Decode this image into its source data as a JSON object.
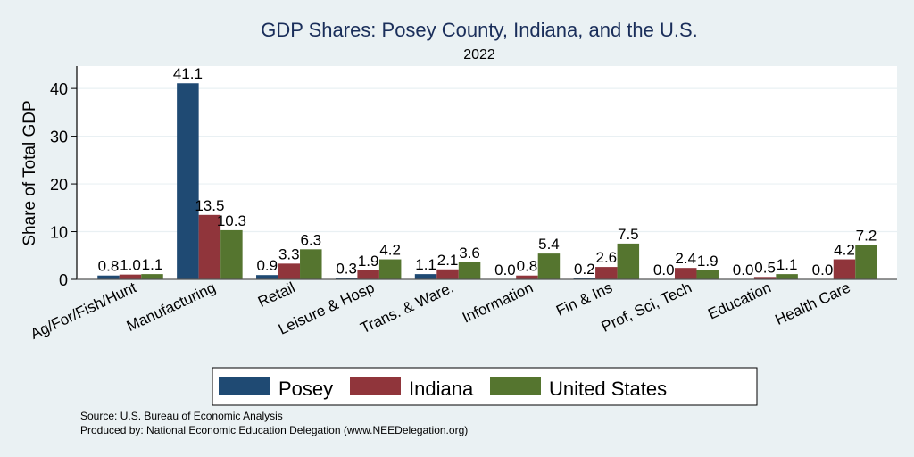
{
  "chart_data": {
    "type": "bar",
    "title": "GDP Shares: Posey County, Indiana, and the U.S.",
    "subtitle": "2022",
    "xlabel": "",
    "ylabel": "Share of Total GDP",
    "ylim": [
      0,
      44.7
    ],
    "yticks": [
      0,
      10,
      20,
      30,
      40
    ],
    "grid": true,
    "legend_position": "bottom",
    "categories": [
      "Ag/For/Fish/Hunt",
      "Manufacturing",
      "Retail",
      "Leisure & Hosp",
      "Trans. & Ware.",
      "Information",
      "Fin & Ins",
      "Prof, Sci, Tech",
      "Education",
      "Health Care"
    ],
    "series": [
      {
        "name": "Posey",
        "color": "#1f4a73",
        "values": [
          0.8,
          41.1,
          0.9,
          0.3,
          1.1,
          0.0,
          0.2,
          0.0,
          0.0,
          0.0
        ],
        "labels": [
          "0.8",
          "41.1",
          "0.9",
          "0.3",
          "1.1",
          "0.0",
          "0.2",
          "0.0",
          "0.0",
          "0.0"
        ]
      },
      {
        "name": "Indiana",
        "color": "#90353b",
        "values": [
          1.0,
          13.5,
          3.3,
          1.9,
          2.1,
          0.8,
          2.6,
          2.4,
          0.5,
          4.2
        ],
        "labels": [
          "1.0",
          "13.5",
          "3.3",
          "1.9",
          "2.1",
          "0.8",
          "2.6",
          "2.4",
          "0.5",
          "4.2"
        ]
      },
      {
        "name": "United States",
        "color": "#55752f",
        "values": [
          1.1,
          10.3,
          6.3,
          4.2,
          3.6,
          5.4,
          7.5,
          1.9,
          1.1,
          7.2
        ],
        "labels": [
          "1.1",
          "10.3",
          "6.3",
          "4.2",
          "3.6",
          "5.4",
          "7.5",
          "1.9",
          "1.1",
          "7.2"
        ]
      }
    ]
  },
  "notes": {
    "source": "Source: U.S. Bureau of Economic Analysis",
    "produced_by": "Produced by: National Economic Education Delegation (www.NEEDelegation.org)"
  }
}
